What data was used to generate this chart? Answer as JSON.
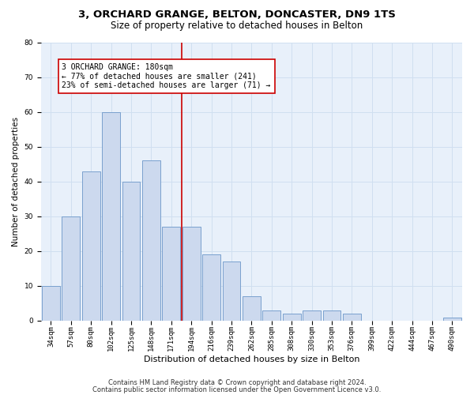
{
  "title1": "3, ORCHARD GRANGE, BELTON, DONCASTER, DN9 1TS",
  "title2": "Size of property relative to detached houses in Belton",
  "xlabel": "Distribution of detached houses by size in Belton",
  "ylabel": "Number of detached properties",
  "categories": [
    "34sqm",
    "57sqm",
    "80sqm",
    "102sqm",
    "125sqm",
    "148sqm",
    "171sqm",
    "194sqm",
    "216sqm",
    "239sqm",
    "262sqm",
    "285sqm",
    "308sqm",
    "330sqm",
    "353sqm",
    "376sqm",
    "399sqm",
    "422sqm",
    "444sqm",
    "467sqm",
    "490sqm"
  ],
  "values": [
    10,
    30,
    43,
    60,
    40,
    46,
    27,
    27,
    19,
    17,
    7,
    3,
    2,
    3,
    3,
    2,
    0,
    0,
    0,
    0,
    1
  ],
  "bar_color": "#ccd9ee",
  "bar_edge_color": "#6b96c8",
  "vline_x": 7.0,
  "vline_color": "#cc0000",
  "annotation_text": "3 ORCHARD GRANGE: 180sqm\n← 77% of detached houses are smaller (241)\n23% of semi-detached houses are larger (71) →",
  "annotation_box_color": "#ffffff",
  "annotation_box_edge": "#cc0000",
  "ylim": [
    0,
    80
  ],
  "yticks": [
    0,
    10,
    20,
    30,
    40,
    50,
    60,
    70,
    80
  ],
  "grid_color": "#d0dff0",
  "bg_color": "#e8f0fa",
  "footer1": "Contains HM Land Registry data © Crown copyright and database right 2024.",
  "footer2": "Contains public sector information licensed under the Open Government Licence v3.0.",
  "title1_fontsize": 9.5,
  "title2_fontsize": 8.5,
  "axis_label_fontsize": 7.5,
  "ylabel_fontsize": 7.5,
  "tick_fontsize": 6.5,
  "annotation_fontsize": 7.0,
  "footer_fontsize": 6.0
}
